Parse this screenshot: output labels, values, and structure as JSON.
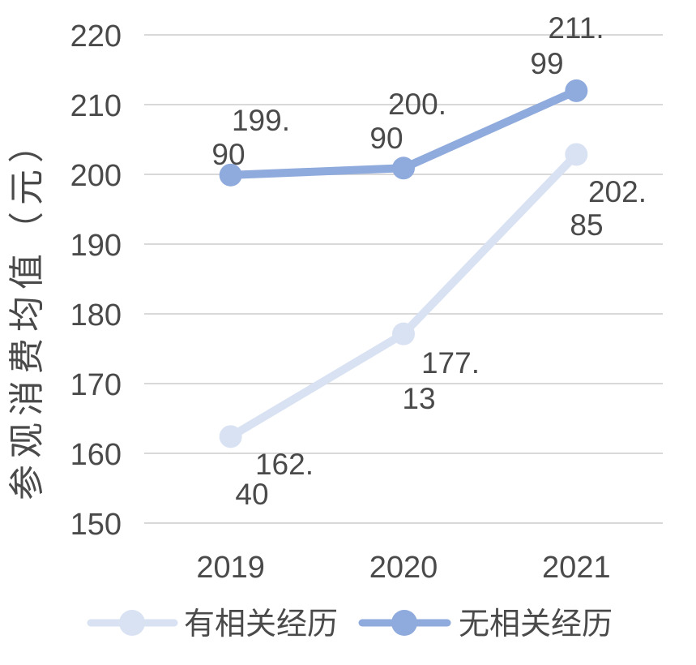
{
  "chart_data": {
    "type": "line",
    "title": "",
    "xlabel": "",
    "ylabel": "参观消费均值（元）",
    "categories": [
      "2019",
      "2020",
      "2021"
    ],
    "series": [
      {
        "name": "有相关经历",
        "values": [
          162.4,
          177.13,
          202.85
        ],
        "color": "#d9e2f3",
        "labels": [
          [
            "162.",
            "40"
          ],
          [
            "177.",
            "13"
          ],
          [
            "202.",
            "85"
          ]
        ],
        "label_pos": [
          [
            [
              351,
              572
            ],
            [
              311,
              609
            ]
          ],
          [
            [
              556,
              447
            ],
            [
              517,
              491
            ]
          ],
          [
            [
              762,
              236
            ],
            [
              724,
              277
            ]
          ]
        ]
      },
      {
        "name": "无相关经历",
        "values": [
          199.9,
          200.9,
          211.99
        ],
        "color": "#8faadc",
        "labels": [
          [
            "199.",
            "90"
          ],
          [
            "200.",
            "90"
          ],
          [
            "211.",
            "99"
          ]
        ],
        "label_pos": [
          [
            [
              322,
              148
            ],
            [
              282,
              190
            ]
          ],
          [
            [
              515,
              128
            ],
            [
              477,
              170
            ]
          ],
          [
            [
              711,
              34
            ],
            [
              675,
              78
            ]
          ]
        ]
      }
    ],
    "ylim": [
      150,
      220
    ],
    "ytick_step": 10,
    "yticks": [
      "150",
      "160",
      "170",
      "180",
      "190",
      "200",
      "210",
      "220"
    ],
    "grid": true,
    "legend_position": "bottom",
    "colors": {
      "grid": "#d9d9d9",
      "text": "#4a4a4a",
      "background": "#ffffff"
    }
  }
}
